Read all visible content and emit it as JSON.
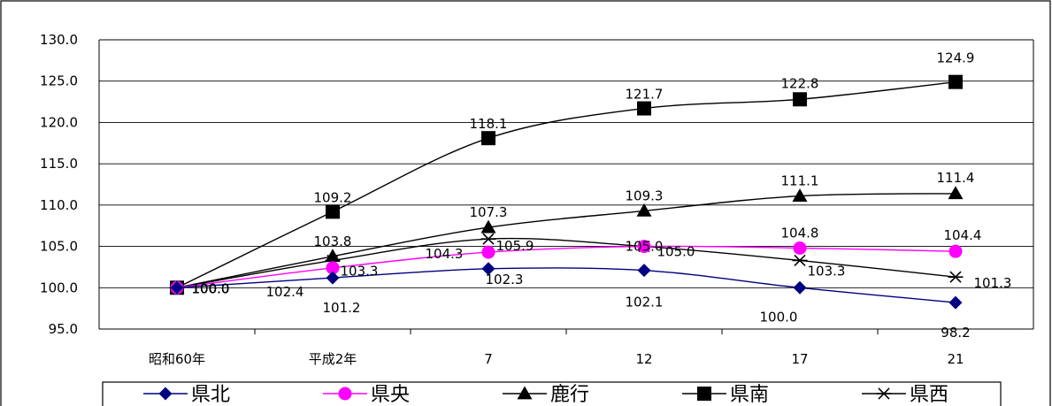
{
  "chart_data": {
    "type": "line",
    "title": "",
    "xlabel": "",
    "ylabel": "",
    "categories": [
      "昭和60年",
      "平成2年",
      "7",
      "12",
      "17",
      "21"
    ],
    "ylim": [
      95.0,
      130.0
    ],
    "ytick_step": 5,
    "ytick_labels": [
      "95.0",
      "100.0",
      "105.0",
      "110.0",
      "115.0",
      "120.0",
      "125.0",
      "130.0"
    ],
    "grid": "horizontal",
    "legend_position": "bottom",
    "series": [
      {
        "name": "県北",
        "values": [
          100.0,
          101.2,
          102.3,
          102.1,
          100.0,
          98.2
        ],
        "labels": [
          "100.0",
          "101.2",
          "102.3",
          "102.1",
          "100.0",
          "98.2"
        ],
        "color": "#000080",
        "marker": "diamond"
      },
      {
        "name": "県央",
        "values": [
          100.0,
          102.4,
          104.3,
          105.0,
          104.8,
          104.4
        ],
        "labels": [
          "100.0",
          "102.4",
          "104.3",
          "105.0",
          "104.8",
          "104.4"
        ],
        "color": "#ff00ff",
        "marker": "circle"
      },
      {
        "name": "鹿行",
        "values": [
          100.0,
          103.8,
          107.3,
          109.3,
          111.1,
          111.4
        ],
        "labels": [
          "100.0",
          "103.8",
          "107.3",
          "109.3",
          "111.1",
          "111.4"
        ],
        "color": "#000000",
        "marker": "triangle"
      },
      {
        "name": "県南",
        "values": [
          100.0,
          109.2,
          118.1,
          121.7,
          122.8,
          124.9
        ],
        "labels": [
          "100.0",
          "109.2",
          "118.1",
          "121.7",
          "122.8",
          "124.9"
        ],
        "color": "#000000",
        "marker": "square"
      },
      {
        "name": "県西",
        "values": [
          100.0,
          103.3,
          105.9,
          105.0,
          103.3,
          101.3
        ],
        "labels": [
          "100.0",
          "103.3",
          "105.9",
          "105.0",
          "103.3",
          "101.3"
        ],
        "color": "#000000",
        "marker": "star"
      }
    ]
  }
}
